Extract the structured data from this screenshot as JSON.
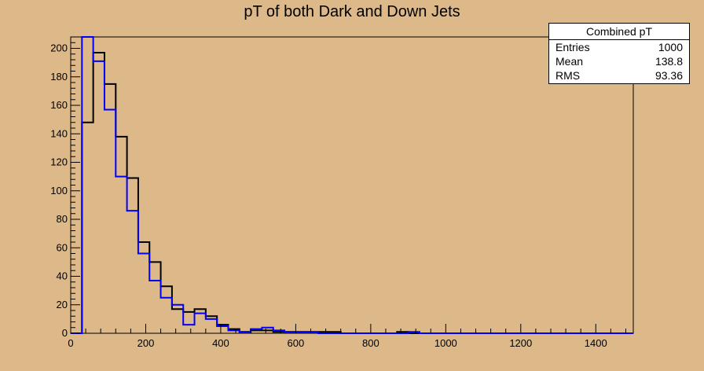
{
  "chart_data": {
    "type": "histogram",
    "title": "pT of both Dark and Down Jets",
    "xlim": [
      0,
      1500
    ],
    "ylim": [
      0,
      208
    ],
    "bin_width": 30,
    "x_ticks": [
      0,
      200,
      400,
      600,
      800,
      1000,
      1200,
      1400
    ],
    "y_ticks": [
      0,
      20,
      40,
      60,
      80,
      100,
      120,
      140,
      160,
      180,
      200
    ],
    "grid": false,
    "series": [
      {
        "color": "#000000",
        "values": [
          0,
          148,
          197,
          175,
          138,
          109,
          64,
          50,
          33,
          17,
          15,
          17,
          12,
          6,
          3,
          1,
          2,
          2,
          1,
          1,
          1,
          1,
          1,
          1,
          0,
          0,
          0,
          0,
          0,
          1,
          0,
          0,
          0,
          0,
          0,
          0,
          0,
          0,
          0,
          0,
          0,
          0,
          0,
          0,
          0,
          0,
          0,
          0,
          0,
          0
        ]
      },
      {
        "color": "#0000ff",
        "values": [
          0,
          208,
          191,
          157,
          110,
          86,
          56,
          37,
          25,
          20,
          6,
          14,
          10,
          5,
          2,
          1,
          3,
          4,
          2,
          1,
          1,
          1,
          0,
          0,
          0,
          0,
          0,
          0,
          0,
          0,
          1,
          0,
          0,
          0,
          0,
          0,
          0,
          0,
          0,
          0,
          0,
          0,
          0,
          0,
          0,
          0,
          0,
          0,
          0,
          0
        ]
      }
    ],
    "stats": {
      "name": "Combined pT",
      "entries_label": "Entries",
      "entries_value": "1000",
      "mean_label": "Mean",
      "mean_value": "138.8",
      "rms_label": "RMS",
      "rms_value": "93.36"
    }
  }
}
